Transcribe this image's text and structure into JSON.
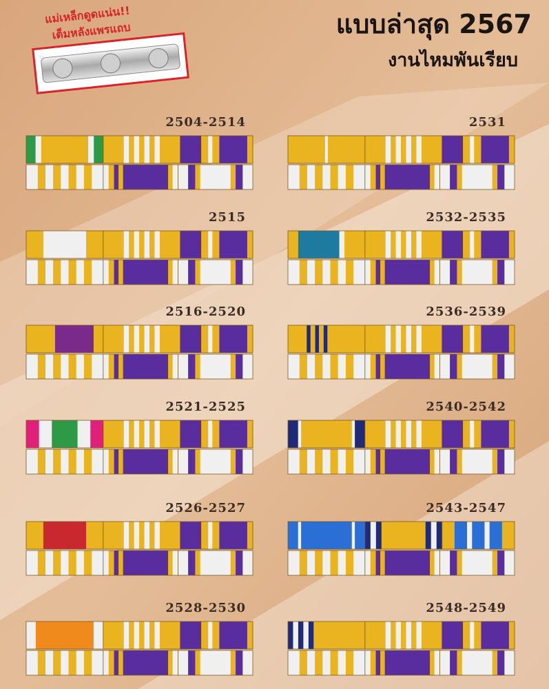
{
  "promo": {
    "line1": "แม่เหล็กดูดแน่น!!",
    "line2": "เต็มหลังแพรแถบ"
  },
  "header": {
    "title": "แบบล่าสุด 2567",
    "subtitle": "งานไหมพันเรียบ"
  },
  "ribbons": [
    {
      "label": "2504-2514"
    },
    {
      "label": "2515"
    },
    {
      "label": "2516-2520"
    },
    {
      "label": "2521-2525"
    },
    {
      "label": "2526-2527"
    },
    {
      "label": "2528-2530"
    },
    {
      "label": "2531"
    },
    {
      "label": "2532-2535"
    },
    {
      "label": "2536-2539"
    },
    {
      "label": "2540-2542"
    },
    {
      "label": "2543-2547"
    },
    {
      "label": "2548-2549"
    }
  ]
}
